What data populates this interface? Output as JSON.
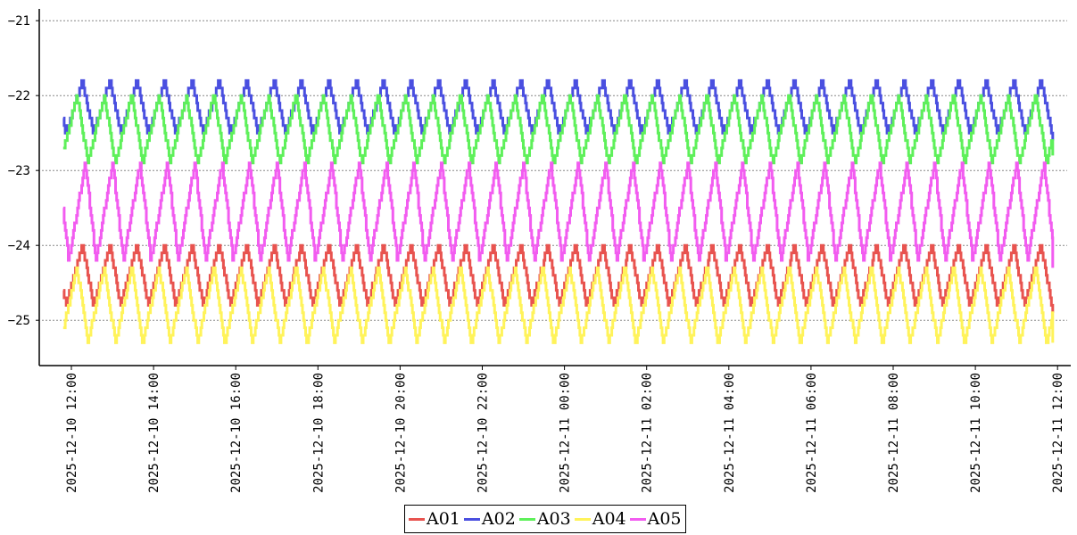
{
  "chart_data": {
    "type": "line",
    "title": "",
    "xlabel": "",
    "ylabel": "",
    "ylim": [
      -25.6,
      -20.85
    ],
    "yticks": [
      -21,
      -22,
      -23,
      -24,
      -25
    ],
    "ytick_labels": [
      "−21",
      "−22",
      "−23",
      "−24",
      "−25"
    ],
    "xticks": [
      "2025-12-10 12:00",
      "2025-12-10 14:00",
      "2025-12-10 16:00",
      "2025-12-10 18:00",
      "2025-12-10 20:00",
      "2025-12-10 22:00",
      "2025-12-11 00:00",
      "2025-12-11 02:00",
      "2025-12-11 04:00",
      "2025-12-11 06:00",
      "2025-12-11 08:00",
      "2025-12-11 10:00",
      "2025-12-11 12:00"
    ],
    "x_range": [
      "2025-12-10 11:48",
      "2025-12-11 11:53"
    ],
    "grid": "horizontal dashed",
    "legend_position": "bottom-center",
    "cycle_period_minutes": 40,
    "series": [
      {
        "name": "A01",
        "color": "#e8534f",
        "min": -24.8,
        "max": -24.0,
        "phase": 0.2,
        "end_value": -24.9
      },
      {
        "name": "A02",
        "color": "#4a4fe0",
        "min": -22.5,
        "max": -21.8,
        "phase": 0.2,
        "end_value": -22.6
      },
      {
        "name": "A03",
        "color": "#5ef05a",
        "min": -22.9,
        "max": -22.0,
        "phase": 0.4,
        "end_value": -22.8
      },
      {
        "name": "A04",
        "color": "#fff35a",
        "min": -25.3,
        "max": -24.3,
        "phase": 0.4,
        "end_value": -25.3
      },
      {
        "name": "A05",
        "color": "#f25cf0",
        "min": -24.2,
        "max": -22.9,
        "phase": 0.1,
        "end_value": -24.3
      }
    ]
  }
}
